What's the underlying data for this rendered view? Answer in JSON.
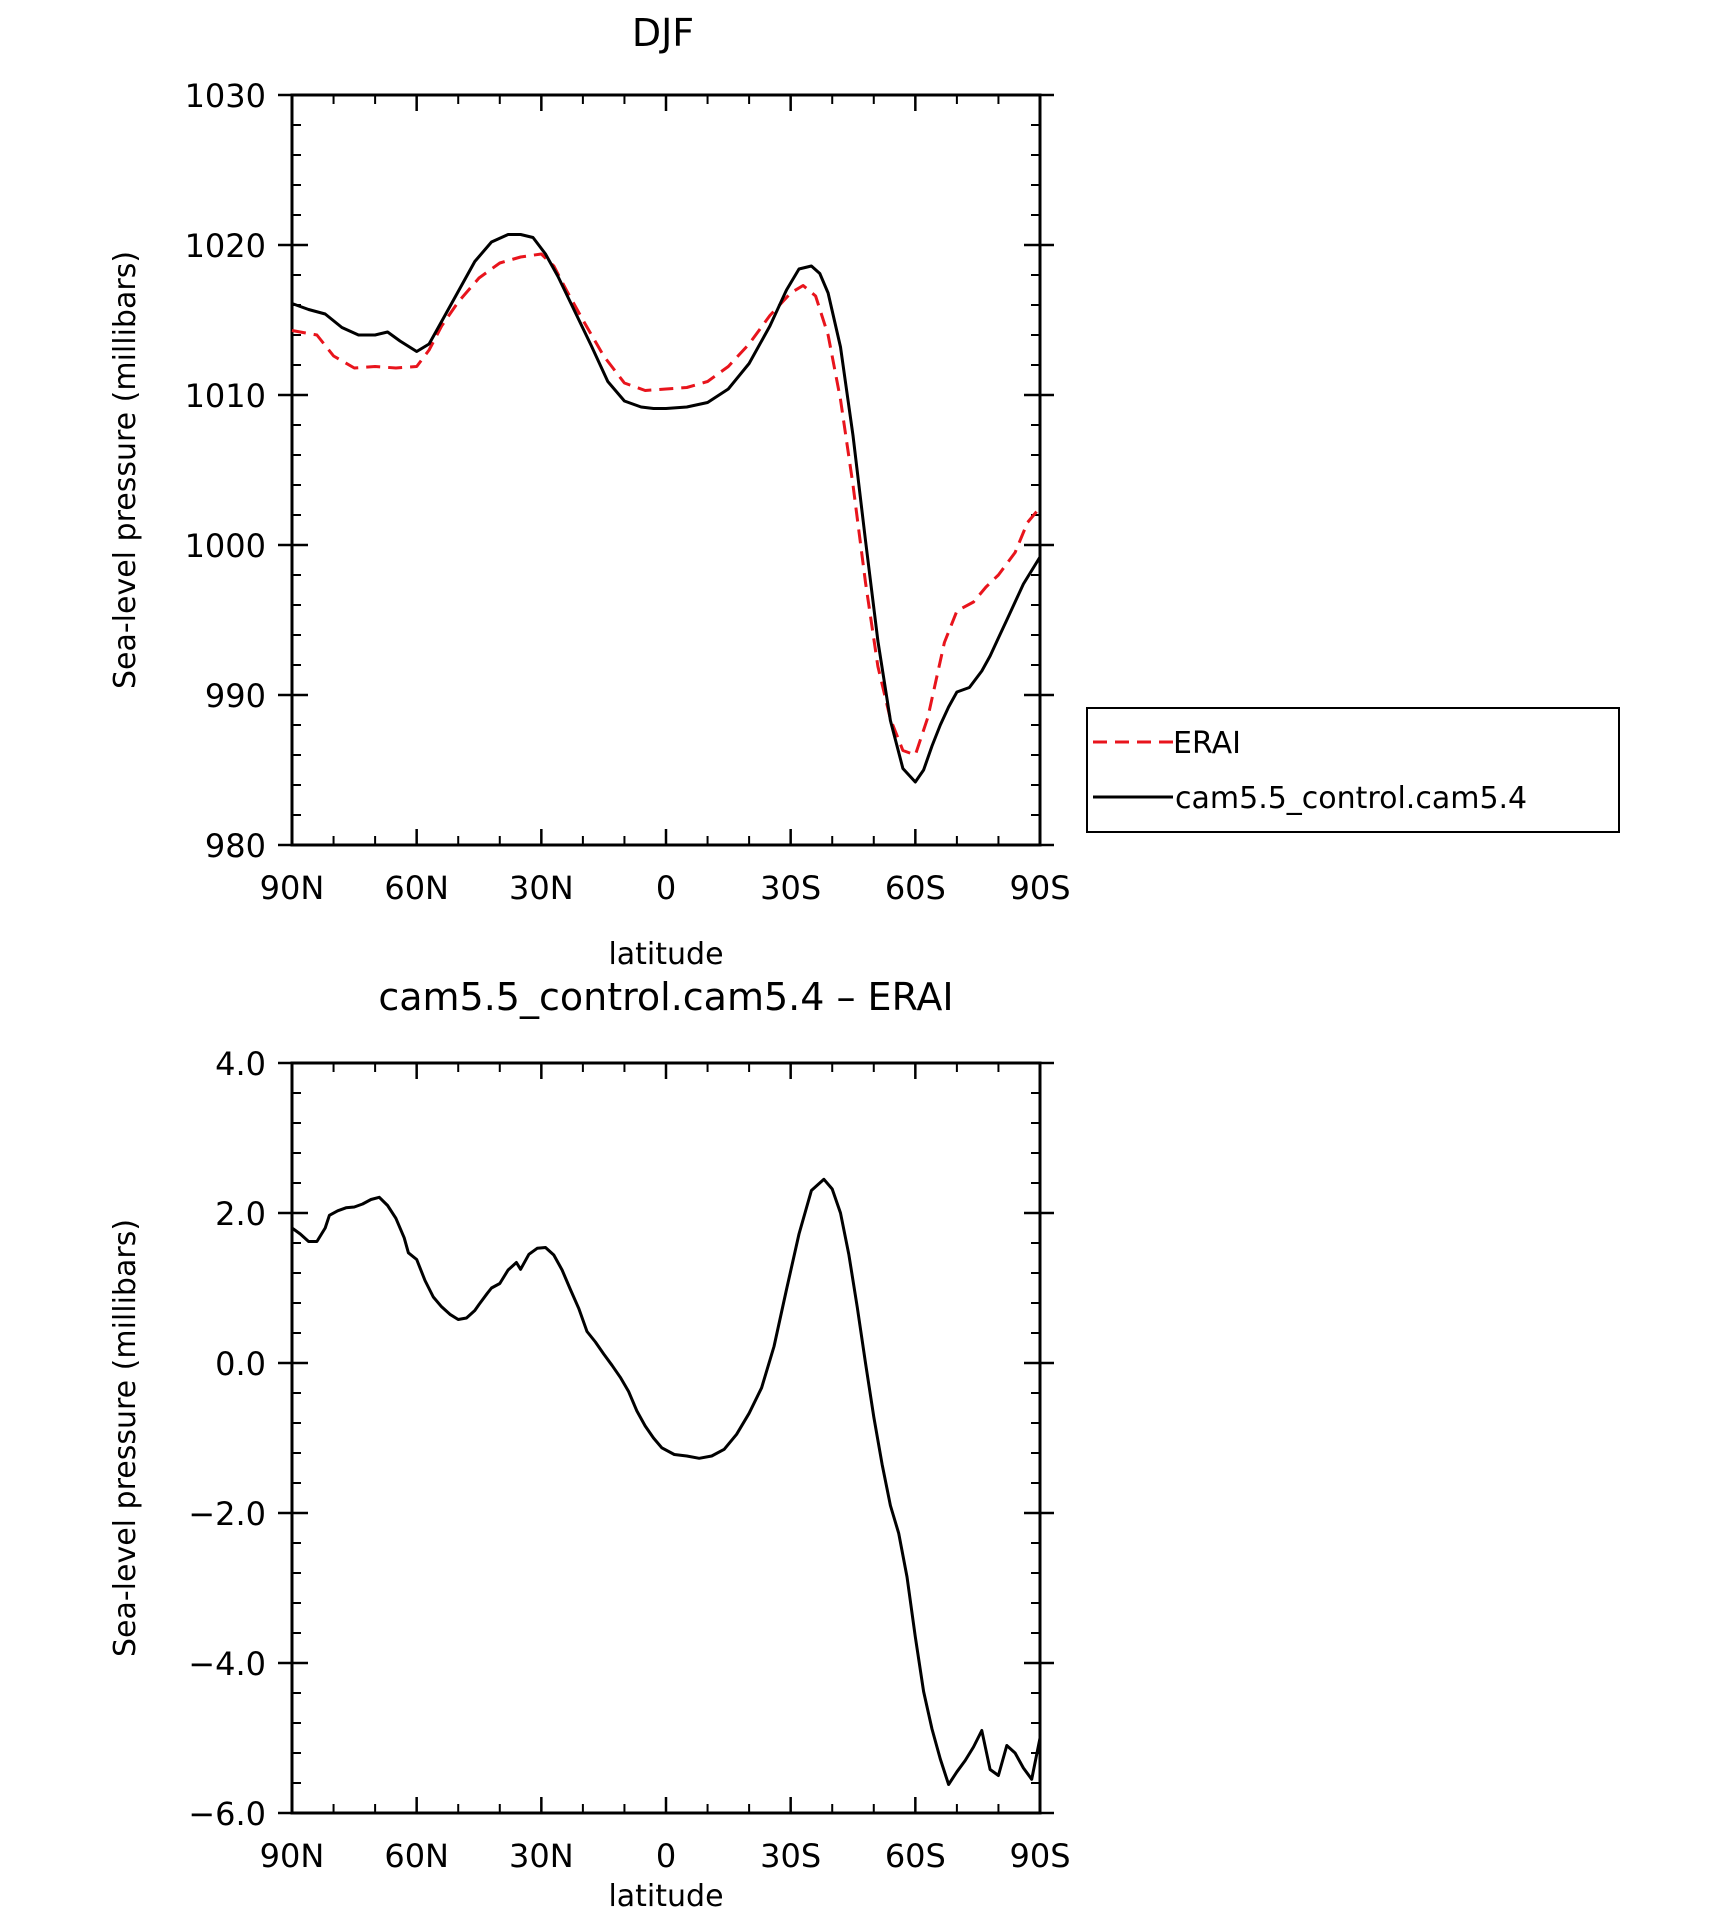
{
  "chart_data": [
    {
      "type": "line",
      "title": "DJF",
      "xlabel": "latitude",
      "ylabel": "Sea-level pressure (millibars)",
      "xticks": [
        {
          "x": 90,
          "label": "90N"
        },
        {
          "x": 60,
          "label": "60N"
        },
        {
          "x": 30,
          "label": "30N"
        },
        {
          "x": 0,
          "label": "0"
        },
        {
          "x": -30,
          "label": "30S"
        },
        {
          "x": -60,
          "label": "60S"
        },
        {
          "x": -90,
          "label": "90S"
        }
      ],
      "yticks": [
        980,
        990,
        1000,
        1010,
        1020,
        1030
      ],
      "ytick_labels": [
        "980",
        "990",
        "1000",
        "1010",
        "1020",
        "1030"
      ],
      "xlim": [
        90,
        -90
      ],
      "ylim": [
        980,
        1030
      ],
      "legend_position": "right",
      "series": [
        {
          "name": "ERAI",
          "color": "#e8141c",
          "style": "dashed",
          "x": [
            90,
            84,
            80,
            75,
            70,
            65,
            60,
            57,
            54,
            50,
            45,
            40,
            35,
            30,
            27,
            24,
            20,
            15,
            10,
            5,
            0,
            -5,
            -10,
            -15,
            -20,
            -25,
            -30,
            -33,
            -36,
            -39,
            -42,
            -45,
            -48,
            -51,
            -54,
            -57,
            -60,
            -63,
            -65,
            -67,
            -70,
            -74,
            -77,
            -80,
            -84,
            -87,
            -90
          ],
          "y": [
            1014.3,
            1014.0,
            1012.6,
            1011.8,
            1011.9,
            1011.8,
            1011.9,
            1013.0,
            1014.6,
            1016.2,
            1017.8,
            1018.8,
            1019.2,
            1019.4,
            1018.6,
            1017.0,
            1015.0,
            1012.6,
            1010.8,
            1010.3,
            1010.4,
            1010.5,
            1010.9,
            1011.9,
            1013.4,
            1015.3,
            1016.8,
            1017.3,
            1016.6,
            1014.0,
            1009.7,
            1004.0,
            997.5,
            991.9,
            988.4,
            986.3,
            986.0,
            988.5,
            991.0,
            993.5,
            995.6,
            996.2,
            997.2,
            998.0,
            999.5,
            1001.5,
            1002.5
          ]
        },
        {
          "name": "cam5.5_control.cam5.4",
          "color": "#000000",
          "style": "solid",
          "x": [
            90,
            86,
            82,
            78,
            74,
            70,
            67,
            64,
            60,
            57,
            54,
            50,
            46,
            42,
            38,
            35,
            32,
            29,
            26,
            22,
            18,
            14,
            10,
            6,
            3,
            0,
            -5,
            -10,
            -15,
            -20,
            -25,
            -29,
            -32,
            -35,
            -37,
            -39,
            -42,
            -45,
            -48,
            -51,
            -54,
            -57,
            -60,
            -62,
            -64,
            -66,
            -68,
            -70,
            -73,
            -76,
            -78,
            -80,
            -82,
            -84,
            -86,
            -88,
            -90
          ],
          "y": [
            1016.1,
            1015.7,
            1015.4,
            1014.5,
            1014.0,
            1014.0,
            1014.2,
            1013.6,
            1012.9,
            1013.4,
            1014.9,
            1016.9,
            1018.9,
            1020.2,
            1020.7,
            1020.7,
            1020.5,
            1019.4,
            1017.9,
            1015.6,
            1013.3,
            1010.9,
            1009.6,
            1009.2,
            1009.1,
            1009.1,
            1009.2,
            1009.5,
            1010.4,
            1012.1,
            1014.6,
            1017.0,
            1018.4,
            1018.6,
            1018.1,
            1016.8,
            1013.2,
            1007.3,
            1000.3,
            993.6,
            988.3,
            985.1,
            984.2,
            985.0,
            986.6,
            988.0,
            989.2,
            990.2,
            990.5,
            991.6,
            992.6,
            993.8,
            995.0,
            996.2,
            997.4,
            998.3,
            999.2
          ]
        }
      ]
    },
    {
      "type": "line",
      "title": "cam5.5_control.cam5.4 – ERAI",
      "xlabel": "latitude",
      "ylabel": "Sea-level pressure (millibars)",
      "xticks": [
        {
          "x": 90,
          "label": "90N"
        },
        {
          "x": 60,
          "label": "60N"
        },
        {
          "x": 30,
          "label": "30N"
        },
        {
          "x": 0,
          "label": "0"
        },
        {
          "x": -30,
          "label": "30S"
        },
        {
          "x": -60,
          "label": "60S"
        },
        {
          "x": -90,
          "label": "90S"
        }
      ],
      "yticks": [
        -6,
        -4,
        -2,
        0,
        2,
        4
      ],
      "ytick_labels": [
        "−6.0",
        "−4.0",
        "−2.0",
        "0.0",
        "2.0",
        "4.0"
      ],
      "xlim": [
        90,
        -90
      ],
      "ylim": [
        -6,
        4
      ],
      "series": [
        {
          "name": "",
          "color": "#000000",
          "style": "solid",
          "x": [
            90,
            88,
            86,
            84,
            82,
            81,
            79,
            77,
            75,
            73,
            71,
            69,
            67,
            65,
            63,
            62,
            60,
            58,
            56,
            54,
            52,
            50,
            48,
            46,
            45,
            43,
            42,
            40,
            38,
            36,
            35,
            33,
            31,
            29,
            27,
            25,
            23,
            21,
            19,
            17,
            15,
            13,
            11,
            9,
            7,
            5,
            3,
            1,
            -2,
            -5,
            -8,
            -11,
            -14,
            -17,
            -20,
            -23,
            -26,
            -29,
            -32,
            -35,
            -38,
            -40,
            -42,
            -44,
            -46,
            -48,
            -50,
            -52,
            -54,
            -56,
            -58,
            -60,
            -62,
            -64,
            -66,
            -68,
            -70,
            -72,
            -74,
            -76,
            -78,
            -80,
            -82,
            -84,
            -86,
            -88,
            -90
          ],
          "y": [
            1.8,
            1.72,
            1.62,
            1.62,
            1.8,
            1.97,
            2.03,
            2.07,
            2.08,
            2.12,
            2.18,
            2.21,
            2.1,
            1.93,
            1.67,
            1.47,
            1.38,
            1.1,
            0.88,
            0.75,
            0.65,
            0.58,
            0.6,
            0.7,
            0.78,
            0.93,
            1.0,
            1.06,
            1.24,
            1.34,
            1.25,
            1.45,
            1.53,
            1.54,
            1.44,
            1.24,
            0.98,
            0.73,
            0.42,
            0.28,
            0.12,
            -0.03,
            -0.19,
            -0.38,
            -0.64,
            -0.84,
            -1.0,
            -1.13,
            -1.22,
            -1.24,
            -1.27,
            -1.24,
            -1.15,
            -0.95,
            -0.67,
            -0.33,
            0.22,
            0.98,
            1.72,
            2.3,
            2.45,
            2.32,
            2.0,
            1.45,
            0.75,
            0.0,
            -0.72,
            -1.35,
            -1.9,
            -2.27,
            -2.85,
            -3.65,
            -4.38,
            -4.88,
            -5.28,
            -5.62,
            -5.45,
            -5.3,
            -5.12,
            -4.9,
            -5.42,
            -5.5,
            -5.1,
            -5.2,
            -5.4,
            -5.55,
            -5.0
          ]
        }
      ]
    }
  ]
}
